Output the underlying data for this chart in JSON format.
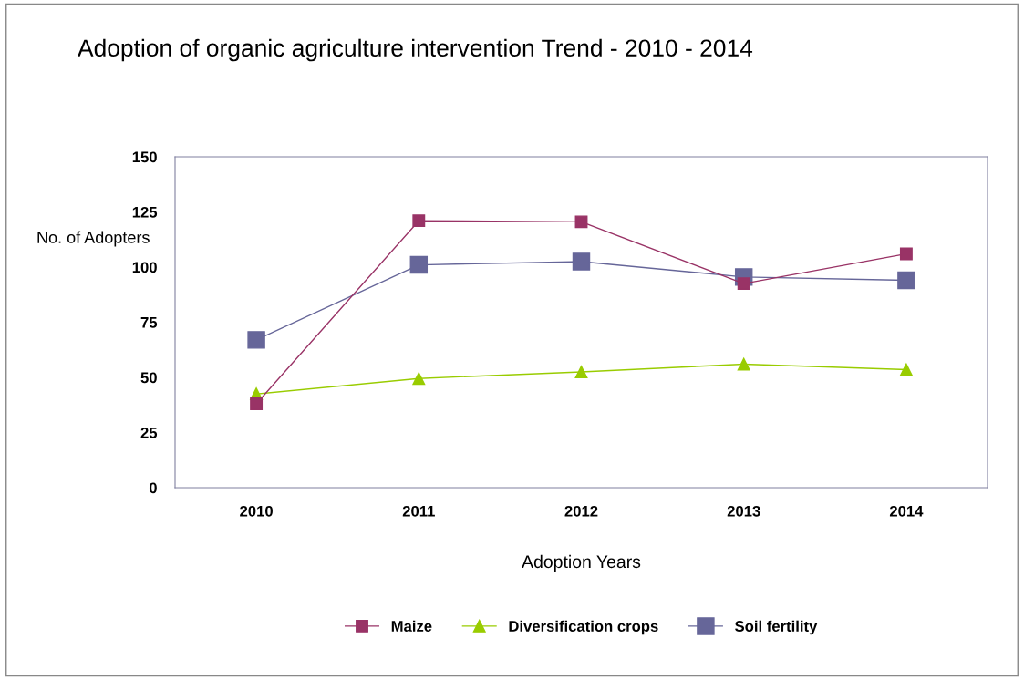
{
  "chart_data": {
    "type": "line",
    "title": "Adoption of organic agriculture intervention Trend - 2010 - 2014",
    "xlabel": "Adoption Years",
    "ylabel": "No. of Adopters",
    "categories": [
      "2010",
      "2011",
      "2012",
      "2013",
      "2014"
    ],
    "series": [
      {
        "name": "Maize",
        "color": "#993366",
        "marker": "square",
        "values": [
          38,
          121,
          120.5,
          92.5,
          106
        ]
      },
      {
        "name": "Diversification crops",
        "color": "#99cc00",
        "marker": "triangle",
        "values": [
          42.5,
          49.5,
          52.5,
          56,
          53.5
        ]
      },
      {
        "name": "Soil fertility",
        "color": "#666699",
        "marker": "square",
        "values": [
          67,
          101,
          102.5,
          95.5,
          94
        ]
      }
    ],
    "ylim": [
      0,
      150
    ],
    "yticks": [
      0,
      25,
      50,
      75,
      100,
      125,
      150
    ],
    "grid": false,
    "legend": "bottom"
  }
}
